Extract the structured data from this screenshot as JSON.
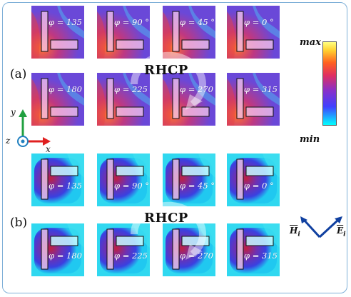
{
  "figure": {
    "group_a_label": "(a)",
    "group_b_label": "(b)",
    "rotation_label_a": "RHCP",
    "rotation_label_b": "RHCP",
    "colorbar_max": "max",
    "colorbar_min": "min",
    "axis_y": "y",
    "axis_x": "x",
    "axis_z": "z",
    "vector_h": "H",
    "vector_h_sub": "i",
    "vector_e": "E",
    "vector_e_sub": "i"
  },
  "panels_a": [
    {
      "label": "φ = 135 °"
    },
    {
      "label": "φ = 90 °"
    },
    {
      "label": "φ = 45 °"
    },
    {
      "label": "φ = 0 °"
    },
    {
      "label": "φ = 180 °"
    },
    {
      "label": "φ = 225 °"
    },
    {
      "label": "φ = 270 °"
    },
    {
      "label": "φ = 315 °"
    }
  ],
  "panels_b": [
    {
      "label": "φ = 135 °"
    },
    {
      "label": "φ = 90 °"
    },
    {
      "label": "φ = 45 °"
    },
    {
      "label": "φ = 0 °"
    },
    {
      "label": "φ = 180 °"
    },
    {
      "label": "φ = 225 °"
    },
    {
      "label": "φ = 270 °"
    },
    {
      "label": "φ = 315 °"
    }
  ],
  "colors": {
    "colormap": [
      "#00ffff",
      "#4040ff",
      "#8a30c8",
      "#e03060",
      "#ff6020",
      "#ffd030",
      "#ffff80"
    ],
    "frame": "#7fb0d8",
    "axis_y": "#20a040",
    "axis_x": "#e02020",
    "axis_z": "#2080c0",
    "vector": "#1040a0"
  }
}
